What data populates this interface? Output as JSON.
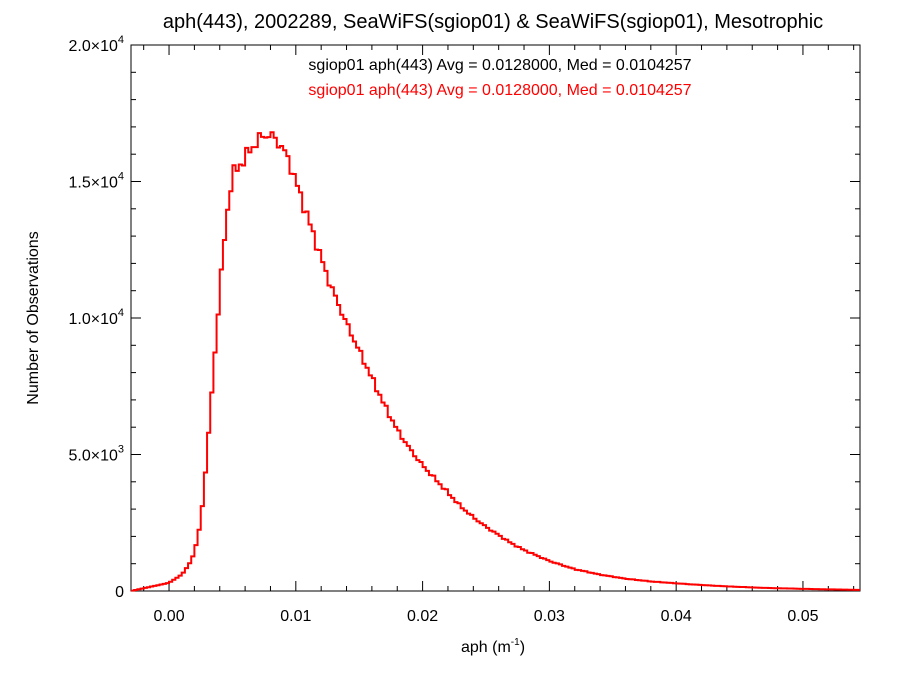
{
  "chart_data": {
    "type": "line",
    "style": "histogram-step",
    "title": "aph(443), 2002289, SeaWiFS(sgiop01) & SeaWiFS(sgiop01), Mesotrophic",
    "xlabel": {
      "base": "aph (m",
      "sup": "-1",
      "end": ")"
    },
    "ylabel": "Number of Observations",
    "xlim": [
      -0.003,
      0.0545
    ],
    "ylim": [
      0,
      20000
    ],
    "x_ticks": [
      {
        "value": 0.0,
        "label": "0.00"
      },
      {
        "value": 0.01,
        "label": "0.01"
      },
      {
        "value": 0.02,
        "label": "0.02"
      },
      {
        "value": 0.03,
        "label": "0.03"
      },
      {
        "value": 0.04,
        "label": "0.04"
      },
      {
        "value": 0.05,
        "label": "0.05"
      }
    ],
    "y_ticks": [
      {
        "value": 0,
        "mant": "0",
        "exp": ""
      },
      {
        "value": 5000,
        "mant": "5.0×10",
        "exp": "3"
      },
      {
        "value": 10000,
        "mant": "1.0×10",
        "exp": "4"
      },
      {
        "value": 15000,
        "mant": "1.5×10",
        "exp": "4"
      },
      {
        "value": 20000,
        "mant": "2.0×10",
        "exp": "4"
      }
    ],
    "grid": false,
    "legend_position": "top-center",
    "legend": [
      {
        "text": "sgiop01 aph(443) Avg = 0.0128000, Med = 0.0104257",
        "color": "#000000"
      },
      {
        "text": "sgiop01 aph(443) Avg = 0.0128000, Med = 0.0104257",
        "color": "#ff0000"
      }
    ],
    "series": [
      {
        "color": "#ff0000",
        "bin_width": 0.0005,
        "points": [
          [
            -0.003,
            0
          ],
          [
            -0.001,
            200
          ],
          [
            0.0,
            300
          ],
          [
            0.001,
            600
          ],
          [
            0.0015,
            900
          ],
          [
            0.002,
            1400
          ],
          [
            0.0025,
            2500
          ],
          [
            0.003,
            5000
          ],
          [
            0.0035,
            8000
          ],
          [
            0.004,
            11000
          ],
          [
            0.0045,
            13500
          ],
          [
            0.005,
            15300
          ],
          [
            0.0055,
            15500
          ],
          [
            0.006,
            15900
          ],
          [
            0.0065,
            16200
          ],
          [
            0.007,
            16500
          ],
          [
            0.0075,
            16700
          ],
          [
            0.008,
            16700
          ],
          [
            0.0085,
            16500
          ],
          [
            0.009,
            16200
          ],
          [
            0.0095,
            15700
          ],
          [
            0.01,
            15000
          ],
          [
            0.0105,
            14300
          ],
          [
            0.011,
            13600
          ],
          [
            0.0115,
            12900
          ],
          [
            0.012,
            12200
          ],
          [
            0.0125,
            11500
          ],
          [
            0.013,
            10900
          ],
          [
            0.014,
            9800
          ],
          [
            0.015,
            8800
          ],
          [
            0.016,
            7800
          ],
          [
            0.017,
            6800
          ],
          [
            0.018,
            5900
          ],
          [
            0.019,
            5200
          ],
          [
            0.02,
            4600
          ],
          [
            0.021,
            4100
          ],
          [
            0.022,
            3600
          ],
          [
            0.023,
            3100
          ],
          [
            0.024,
            2700
          ],
          [
            0.025,
            2350
          ],
          [
            0.026,
            2050
          ],
          [
            0.027,
            1750
          ],
          [
            0.028,
            1500
          ],
          [
            0.029,
            1300
          ],
          [
            0.03,
            1100
          ],
          [
            0.032,
            800
          ],
          [
            0.034,
            600
          ],
          [
            0.036,
            450
          ],
          [
            0.038,
            350
          ],
          [
            0.04,
            280
          ],
          [
            0.042,
            220
          ],
          [
            0.044,
            170
          ],
          [
            0.046,
            130
          ],
          [
            0.048,
            100
          ],
          [
            0.05,
            80
          ],
          [
            0.052,
            60
          ],
          [
            0.0545,
            40
          ]
        ]
      }
    ]
  }
}
